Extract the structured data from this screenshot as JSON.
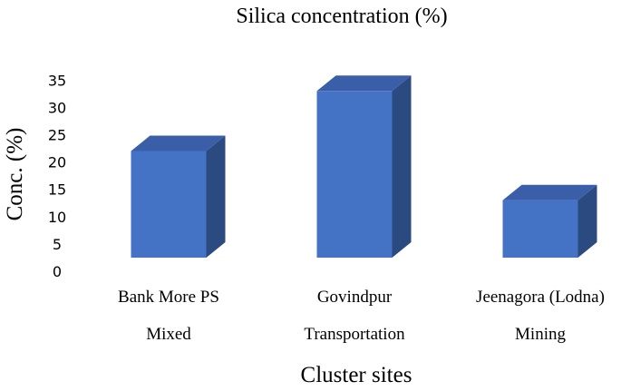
{
  "chart_data": {
    "type": "bar",
    "style": "3d-column",
    "title": "Silica concentration (%)",
    "xlabel": "Cluster sites",
    "ylabel": "Conc. (%)",
    "categories": [
      {
        "site": "Bank More PS",
        "type": "Mixed"
      },
      {
        "site": "Govindpur",
        "type": "Transportation"
      },
      {
        "site": "Jeenagora (Lodna)",
        "type": "Mining"
      }
    ],
    "values": [
      24,
      35,
      15
    ],
    "yticks": [
      "0",
      "5",
      "10",
      "15",
      "20",
      "25",
      "30",
      "35"
    ],
    "ylim": [
      0,
      35
    ],
    "grid": false,
    "legend": "none",
    "colors": {
      "front": "#4472C4",
      "top": "#3A5EA8",
      "side": "#2B4A80"
    }
  }
}
